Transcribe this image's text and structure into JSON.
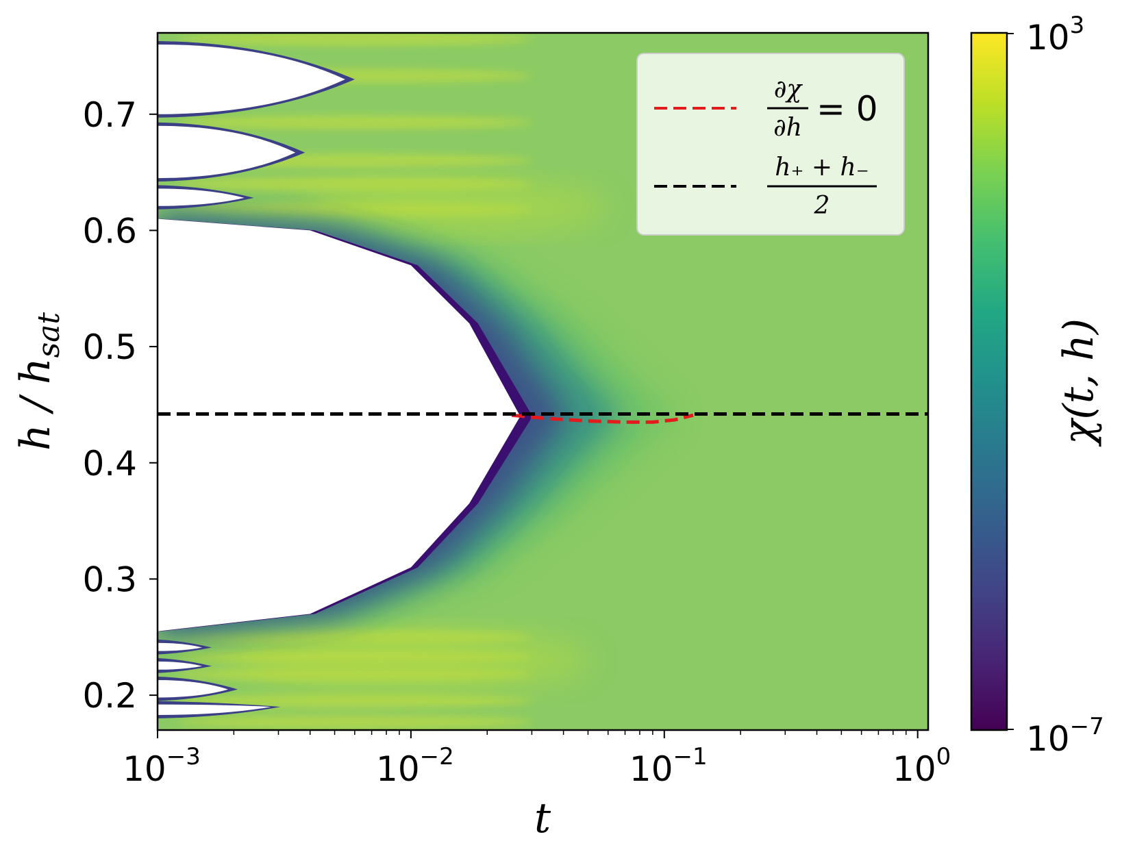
{
  "chart_data": {
    "type": "heatmap",
    "x": {
      "label": "t",
      "scale": "log",
      "lim": [
        0.001,
        1.1
      ],
      "ticks": [
        {
          "value": 0.001,
          "base": "10",
          "exp": "−3"
        },
        {
          "value": 0.01,
          "base": "10",
          "exp": "−2"
        },
        {
          "value": 0.1,
          "base": "10",
          "exp": "−1"
        },
        {
          "value": 1,
          "base": "10",
          "exp": "0"
        }
      ]
    },
    "y": {
      "label_main": "h",
      "label_sep": " / ",
      "label_denom": "h",
      "label_sub": "sat",
      "lim": [
        0.17,
        0.77
      ],
      "ticks": [
        {
          "value": 0.2,
          "label": "0.2"
        },
        {
          "value": 0.3,
          "label": "0.3"
        },
        {
          "value": 0.4,
          "label": "0.4"
        },
        {
          "value": 0.5,
          "label": "0.5"
        },
        {
          "value": 0.6,
          "label": "0.6"
        },
        {
          "value": 0.7,
          "label": "0.7"
        }
      ]
    },
    "colorbar": {
      "label": "χ(t, h)",
      "scale": "log",
      "min": {
        "base": "10",
        "exp": "−7"
      },
      "max": {
        "base": "10",
        "exp": "3"
      },
      "colormap": "viridis"
    },
    "plateau_color": "#8bca64",
    "cusp": {
      "t": 0.027,
      "h": 0.44
    },
    "white_region_edge": {
      "upper": [
        [
          0.001,
          0.61
        ],
        [
          0.004,
          0.6
        ],
        [
          0.01,
          0.57
        ],
        [
          0.017,
          0.52
        ],
        [
          0.027,
          0.44
        ]
      ],
      "lower": [
        [
          0.001,
          0.255
        ],
        [
          0.004,
          0.27
        ],
        [
          0.01,
          0.31
        ],
        [
          0.017,
          0.365
        ],
        [
          0.027,
          0.44
        ]
      ]
    },
    "white_fingers": [
      {
        "h_top": 0.76,
        "h_bottom": 0.7,
        "t_tip": 0.0055,
        "h_tip": 0.73
      },
      {
        "h_top": 0.69,
        "h_bottom": 0.645,
        "t_tip": 0.0035,
        "h_tip": 0.667
      },
      {
        "h_top": 0.636,
        "h_bottom": 0.621,
        "t_tip": 0.0022,
        "h_tip": 0.628
      },
      {
        "h_top": 0.245,
        "h_bottom": 0.238,
        "t_tip": 0.0015,
        "h_tip": 0.241
      },
      {
        "h_top": 0.229,
        "h_bottom": 0.222,
        "t_tip": 0.0015,
        "h_tip": 0.225
      },
      {
        "h_top": 0.213,
        "h_bottom": 0.198,
        "t_tip": 0.0019,
        "h_tip": 0.205
      },
      {
        "h_top": 0.192,
        "h_bottom": 0.183,
        "t_tip": 0.0028,
        "h_tip": 0.19
      }
    ],
    "series": [
      {
        "name_num": "∂χ",
        "name_den": "∂h",
        "name_rhs": "= 0",
        "style": "dashed",
        "color": "#e41a1c",
        "points": [
          [
            0.025,
            0.441
          ],
          [
            0.035,
            0.438
          ],
          [
            0.05,
            0.436
          ],
          [
            0.07,
            0.435
          ],
          [
            0.09,
            0.435
          ],
          [
            0.11,
            0.437
          ],
          [
            0.13,
            0.441
          ]
        ]
      },
      {
        "name_num": "h₊ + h₋",
        "name_den": "2",
        "style": "dashed",
        "color": "#000000",
        "points": [
          [
            0.001,
            0.442
          ],
          [
            1.1,
            0.442
          ]
        ]
      }
    ],
    "legend_position": "upper right"
  }
}
